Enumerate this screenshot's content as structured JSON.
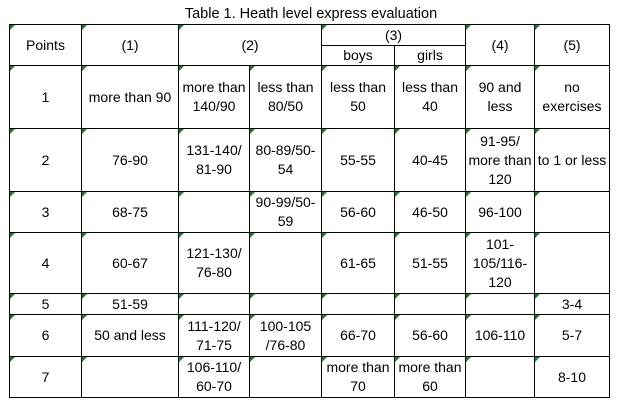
{
  "caption": "Table 1. Heath level express evaluation",
  "header": {
    "points": "Points",
    "c1": "(1)",
    "c2": "(2)",
    "c3": "(3)",
    "c3_boys": "boys",
    "c3_girls": "girls",
    "c4": "(4)",
    "c5": "(5)"
  },
  "rows": [
    {
      "points": "1",
      "c1": "more than 90",
      "c2a": "more than 140/90",
      "c2b": "less than 80/50",
      "boys": "less than 50",
      "girls": "less than 40",
      "c4": "90 and less",
      "c5": "no exercises"
    },
    {
      "points": "2",
      "c1": "76-90",
      "c2a": "131-140/ 81-90",
      "c2b": "80-89/50-54",
      "boys": "55-55",
      "girls": "40-45",
      "c4": "91-95/ more than 120",
      "c5": "to 1 or less"
    },
    {
      "points": "3",
      "c1": "68-75",
      "c2a": "",
      "c2b": "90-99/50-59",
      "boys": "56-60",
      "girls": "46-50",
      "c4": "96-100",
      "c5": ""
    },
    {
      "points": "4",
      "c1": "60-67",
      "c2a": "121-130/ 76-80",
      "c2b": "",
      "boys": "61-65",
      "girls": "51-55",
      "c4": "101-105/116-120",
      "c5": ""
    },
    {
      "points": "5",
      "c1": "51-59",
      "c2a": "",
      "c2b": "",
      "boys": "",
      "girls": "",
      "c4": "",
      "c5": "3-4"
    },
    {
      "points": "6",
      "c1": "50 and less",
      "c2a": "111-120/ 71-75",
      "c2b": "100-105 /76-80",
      "boys": "66-70",
      "girls": "56-60",
      "c4": "106-110",
      "c5": "5-7"
    },
    {
      "points": "7",
      "c1": "",
      "c2a": "106-110/ 60-70",
      "c2b": "",
      "boys": "more than 70",
      "girls": "more than 60",
      "c4": "",
      "c5": "8-10"
    }
  ]
}
